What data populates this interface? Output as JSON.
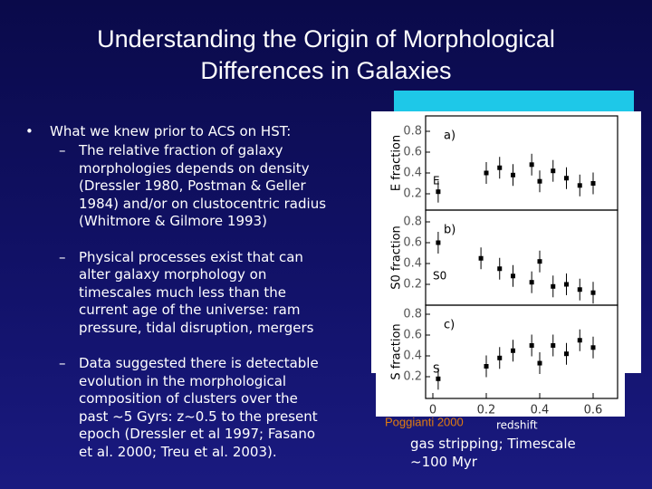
{
  "header": {
    "title_lines": [
      "Understanding the Origin of Morphological",
      "Differences in Galaxies"
    ]
  },
  "bullets": {
    "marker": "•",
    "text": "What we knew prior to ACS on HST:",
    "sub_marker": "–",
    "sub": [
      [
        "The relative fraction of galaxy",
        "morphologies depends on density",
        "(Dressler 1980, Postman & Geller",
        "1984) and/or on clustocentric radius",
        "(Whitmore & Gilmore 1993)"
      ],
      [
        "Physical processes exist that can",
        "alter galaxy morphology on",
        "timescales much less than the",
        "current age of the universe: ram",
        "pressure, tidal disruption, mergers"
      ],
      [
        "Data suggested there is detectable",
        "evolution in the morphological",
        "composition of clusters over the",
        "past ~5 Gyrs: z~0.5 to the present",
        "epoch (Dressler et al 1997; Fasano",
        "et al. 2000; Treu et al. 2003)."
      ]
    ]
  },
  "note_lines": [
    "gas stripping; Timescale",
    "~100 Myr"
  ],
  "figure": {
    "credit": "Poggianti 2000",
    "xlabel": "redshift",
    "xticks": [
      0,
      0.2,
      0.4,
      0.6
    ],
    "yticks": [
      0.8,
      0.6,
      0.4,
      0.2
    ],
    "panels": [
      {
        "label": "a)",
        "ylabel": "E fraction",
        "key": "E",
        "points": [
          [
            0.02,
            0.22
          ],
          [
            0.2,
            0.4
          ],
          [
            0.25,
            0.45
          ],
          [
            0.3,
            0.38
          ],
          [
            0.37,
            0.48
          ],
          [
            0.4,
            0.32
          ],
          [
            0.45,
            0.42
          ],
          [
            0.5,
            0.35
          ],
          [
            0.55,
            0.28
          ],
          [
            0.6,
            0.3
          ]
        ]
      },
      {
        "label": "b)",
        "ylabel": "S0 fraction",
        "key": "S0",
        "points": [
          [
            0.02,
            0.6
          ],
          [
            0.18,
            0.45
          ],
          [
            0.25,
            0.35
          ],
          [
            0.3,
            0.28
          ],
          [
            0.37,
            0.22
          ],
          [
            0.4,
            0.42
          ],
          [
            0.45,
            0.18
          ],
          [
            0.5,
            0.2
          ],
          [
            0.55,
            0.15
          ],
          [
            0.6,
            0.12
          ]
        ]
      },
      {
        "label": "c)",
        "ylabel": "S fraction",
        "key": "S",
        "points": [
          [
            0.02,
            0.18
          ],
          [
            0.2,
            0.3
          ],
          [
            0.25,
            0.38
          ],
          [
            0.3,
            0.45
          ],
          [
            0.37,
            0.5
          ],
          [
            0.4,
            0.33
          ],
          [
            0.45,
            0.5
          ],
          [
            0.5,
            0.42
          ],
          [
            0.55,
            0.55
          ],
          [
            0.6,
            0.48
          ]
        ]
      }
    ]
  }
}
